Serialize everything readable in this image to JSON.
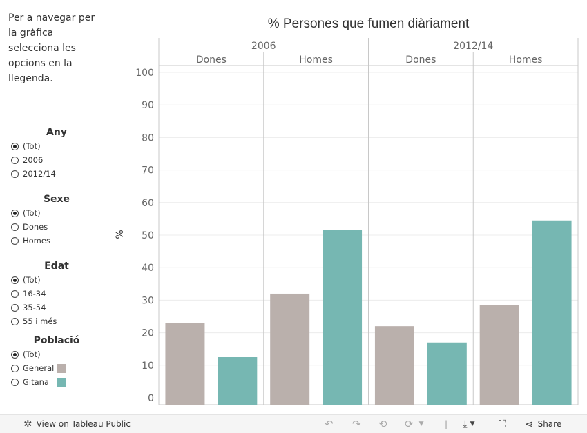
{
  "intro_text": "Per a navegar per la gràfica selecciona les opcions en la llegenda.",
  "filters": [
    {
      "title": "Any",
      "options": [
        {
          "label": "(Tot)",
          "selected": true
        },
        {
          "label": "2006",
          "selected": false
        },
        {
          "label": "2012/14",
          "selected": false
        }
      ]
    },
    {
      "title": "Sexe",
      "options": [
        {
          "label": "(Tot)",
          "selected": true
        },
        {
          "label": "Dones",
          "selected": false
        },
        {
          "label": "Homes",
          "selected": false
        }
      ]
    },
    {
      "title": "Edat",
      "options": [
        {
          "label": "(Tot)",
          "selected": true
        },
        {
          "label": "16-34",
          "selected": false
        },
        {
          "label": "35-54",
          "selected": false
        },
        {
          "label": "55 i més",
          "selected": false
        }
      ]
    },
    {
      "title": "Població",
      "options": [
        {
          "label": "(Tot)",
          "selected": true
        },
        {
          "label": "General",
          "selected": false,
          "color": "#bab0ac"
        },
        {
          "label": "Gitana",
          "selected": false,
          "color": "#76b7b2"
        }
      ]
    }
  ],
  "chart_data": {
    "type": "bar",
    "title": "% Persones que fumen diàriament",
    "ylabel": "%",
    "ylim": [
      0,
      100
    ],
    "yticks": [
      0,
      10,
      20,
      30,
      40,
      50,
      60,
      70,
      80,
      90,
      100
    ],
    "grid": true,
    "groups": [
      {
        "label": "2006",
        "subgroups": [
          {
            "label": "Dones",
            "values": [
              23,
              12.5
            ]
          },
          {
            "label": "Homes",
            "values": [
              32,
              51.5
            ]
          }
        ]
      },
      {
        "label": "2012/14",
        "subgroups": [
          {
            "label": "Dones",
            "values": [
              22,
              17
            ]
          },
          {
            "label": "Homes",
            "values": [
              28.5,
              54.5
            ]
          }
        ]
      }
    ],
    "series": [
      {
        "name": "General",
        "color": "#bab0ac"
      },
      {
        "name": "Gitana",
        "color": "#76b7b2"
      }
    ]
  },
  "footer": {
    "view_label": "View on Tableau Public",
    "share_label": "Share"
  }
}
